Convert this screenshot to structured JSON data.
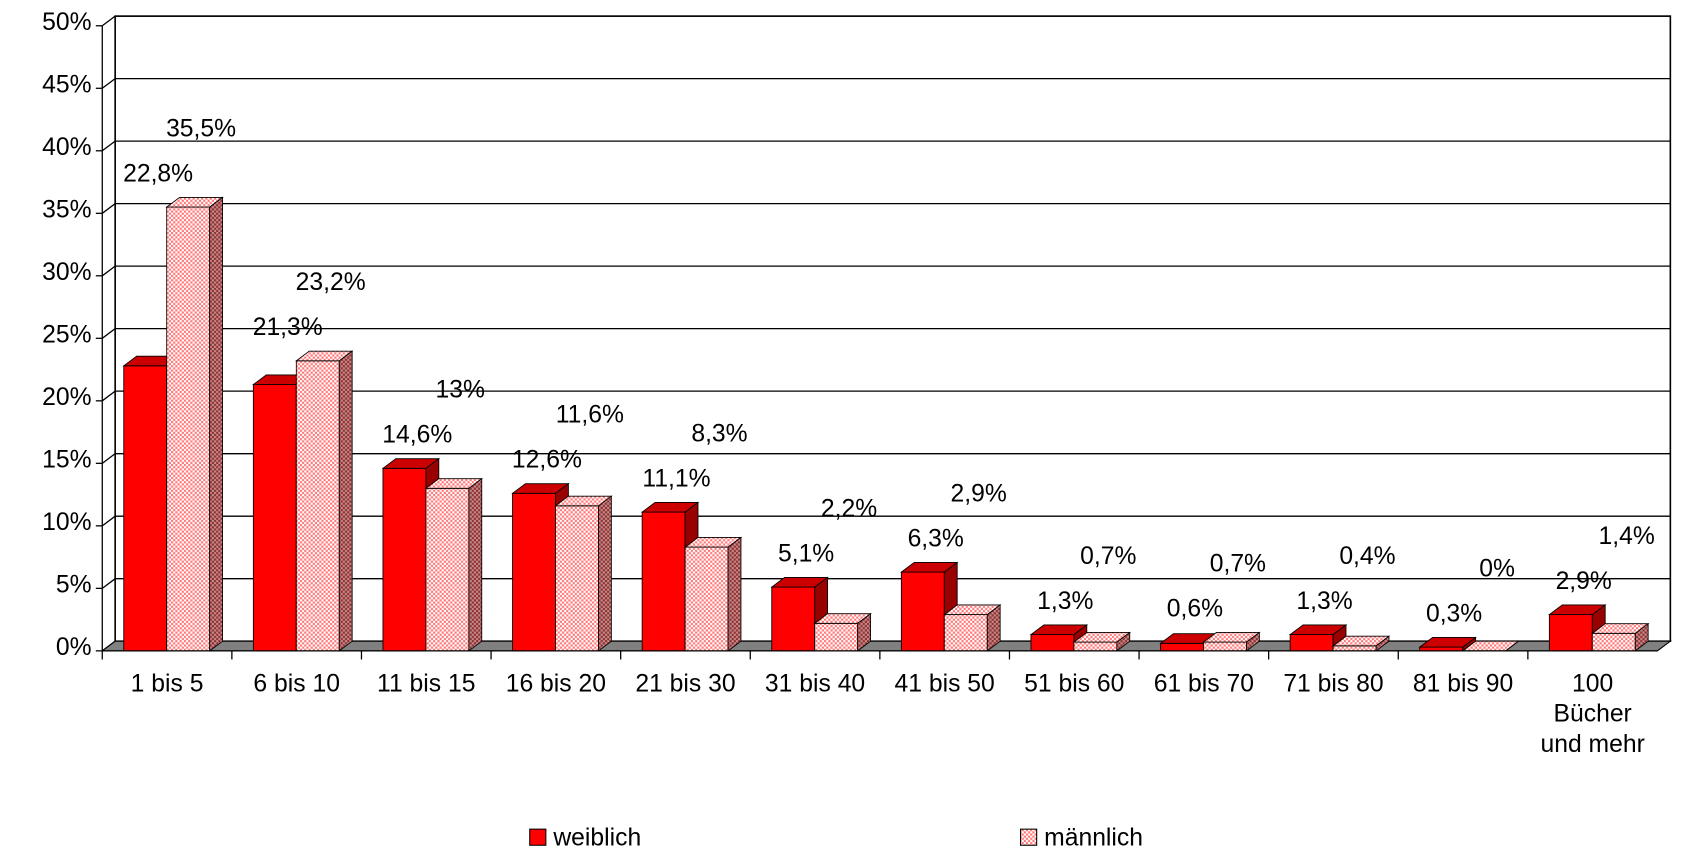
{
  "chart_data": {
    "type": "bar3d",
    "categories": [
      "1 bis 5",
      "6 bis 10",
      "11 bis 15",
      "16 bis 20",
      "21 bis 30",
      "31 bis 40",
      "41 bis 50",
      "51 bis 60",
      "61 bis 70",
      "71 bis 80",
      "81 bis 90",
      "100 Bücher und mehr"
    ],
    "series": [
      {
        "name": "weiblich",
        "color": "#ff0000",
        "values": [
          22.8,
          21.3,
          14.6,
          12.6,
          11.1,
          5.1,
          6.3,
          1.3,
          0.6,
          1.3,
          0.3,
          2.9
        ],
        "value_labels": [
          "22,8%",
          "21,3%",
          "14,6%",
          "12,6%",
          "11,1%",
          "5,1%",
          "6,3%",
          "1,3%",
          "0,6%",
          "1,3%",
          "0,3%",
          "2,9%"
        ]
      },
      {
        "name": "männlich",
        "color": "#ff9999",
        "values": [
          35.5,
          23.2,
          13,
          11.6,
          8.3,
          2.2,
          2.9,
          0.7,
          0.7,
          0.4,
          0,
          1.4
        ],
        "value_labels": [
          "35,5%",
          "23,2%",
          "13%",
          "11,6%",
          "8,3%",
          "2,2%",
          "2,9%",
          "0,7%",
          "0,7%",
          "0,4%",
          "0%",
          "1,4%"
        ]
      }
    ],
    "ylim": [
      0,
      50
    ],
    "yticks": [
      {
        "value": 0,
        "label": "0%"
      },
      {
        "value": 5,
        "label": "5%"
      },
      {
        "value": 10,
        "label": "10%"
      },
      {
        "value": 15,
        "label": "15%"
      },
      {
        "value": 20,
        "label": "20%"
      },
      {
        "value": 25,
        "label": "25%"
      },
      {
        "value": 30,
        "label": "30%"
      },
      {
        "value": 35,
        "label": "35%"
      },
      {
        "value": 40,
        "label": "40%"
      },
      {
        "value": 45,
        "label": "45%"
      },
      {
        "value": 50,
        "label": "50%"
      }
    ],
    "grid": true,
    "legend": "bottom"
  }
}
